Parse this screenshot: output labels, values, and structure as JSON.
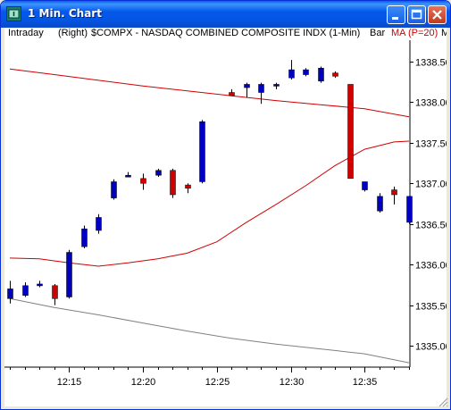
{
  "window": {
    "title": "1 Min. Chart",
    "buttons": [
      "minimize",
      "maximize",
      "close"
    ]
  },
  "infobar": {
    "mode": "Intraday",
    "scale_side": "(Right)",
    "symbol_desc": "$COMPX - NASDAQ COMBINED COMPOSITE INDX  (1-Min)",
    "bar_label": "Bar",
    "indicator_label": "MA (P=20)",
    "overflow_text": "M"
  },
  "colors": {
    "up_bar": "#0000C0",
    "down_bar": "#D00000",
    "ma_line": "#D00000",
    "lower_line": "#808080",
    "title_bar": "#0558EA"
  },
  "chart_data": {
    "type": "candlestick",
    "title": "$COMPX - NASDAQ COMBINED COMPOSITE INDX (1-Min)",
    "yaxis_side": "right",
    "ylim": [
      1334.75,
      1338.6
    ],
    "y_ticks": [
      "1338.50",
      "1338.00",
      "1337.50",
      "1337.00",
      "1336.50",
      "1336.00",
      "1335.50",
      "1335.00"
    ],
    "y_tick_values": [
      1338.5,
      1338.0,
      1337.5,
      1337.0,
      1336.5,
      1336.0,
      1335.5,
      1335.0
    ],
    "x_ticks": [
      "12:15",
      "12:20",
      "12:25",
      "12:30",
      "12:35"
    ],
    "x_tick_minutes": [
      15,
      20,
      25,
      30,
      35
    ],
    "xlim_minutes": [
      11.0,
      38.0
    ],
    "candles": [
      {
        "t": 11,
        "o": 1335.58,
        "h": 1335.8,
        "l": 1335.52,
        "c": 1335.7
      },
      {
        "t": 12,
        "o": 1335.62,
        "h": 1335.78,
        "l": 1335.6,
        "c": 1335.74
      },
      {
        "t": 13,
        "o": 1335.74,
        "h": 1335.8,
        "l": 1335.72,
        "c": 1335.76
      },
      {
        "t": 14,
        "o": 1335.74,
        "h": 1335.76,
        "l": 1335.5,
        "c": 1335.58
      },
      {
        "t": 15,
        "o": 1335.6,
        "h": 1336.18,
        "l": 1335.58,
        "c": 1336.15
      },
      {
        "t": 16,
        "o": 1336.22,
        "h": 1336.48,
        "l": 1336.2,
        "c": 1336.44
      },
      {
        "t": 17,
        "o": 1336.42,
        "h": 1336.62,
        "l": 1336.38,
        "c": 1336.58
      },
      {
        "t": 18,
        "o": 1336.82,
        "h": 1337.05,
        "l": 1336.8,
        "c": 1337.02
      },
      {
        "t": 19,
        "o": 1337.1,
        "h": 1337.14,
        "l": 1337.08,
        "c": 1337.1
      },
      {
        "t": 20,
        "o": 1337.06,
        "h": 1337.12,
        "l": 1336.92,
        "c": 1337.0
      },
      {
        "t": 21,
        "o": 1337.1,
        "h": 1337.18,
        "l": 1337.08,
        "c": 1337.16
      },
      {
        "t": 22,
        "o": 1337.16,
        "h": 1337.18,
        "l": 1336.82,
        "c": 1336.86
      },
      {
        "t": 23,
        "o": 1336.98,
        "h": 1337.0,
        "l": 1336.88,
        "c": 1336.94
      },
      {
        "t": 24,
        "o": 1337.02,
        "h": 1337.78,
        "l": 1337.0,
        "c": 1337.76
      },
      {
        "t": 26,
        "o": 1338.12,
        "h": 1338.16,
        "l": 1338.08,
        "c": 1338.08
      },
      {
        "t": 27,
        "o": 1338.18,
        "h": 1338.24,
        "l": 1338.06,
        "c": 1338.22
      },
      {
        "t": 28,
        "o": 1338.12,
        "h": 1338.24,
        "l": 1337.98,
        "c": 1338.22
      },
      {
        "t": 29,
        "o": 1338.2,
        "h": 1338.24,
        "l": 1338.16,
        "c": 1338.22
      },
      {
        "t": 30,
        "o": 1338.3,
        "h": 1338.52,
        "l": 1338.28,
        "c": 1338.4
      },
      {
        "t": 31,
        "o": 1338.34,
        "h": 1338.42,
        "l": 1338.32,
        "c": 1338.4
      },
      {
        "t": 32,
        "o": 1338.26,
        "h": 1338.44,
        "l": 1338.24,
        "c": 1338.42
      },
      {
        "t": 33,
        "o": 1338.36,
        "h": 1338.38,
        "l": 1338.3,
        "c": 1338.32
      },
      {
        "t": 34,
        "o": 1338.22,
        "h": 1338.22,
        "l": 1337.06,
        "c": 1337.06
      },
      {
        "t": 35,
        "o": 1336.92,
        "h": 1337.02,
        "l": 1336.9,
        "c": 1337.02
      },
      {
        "t": 36,
        "o": 1336.66,
        "h": 1336.88,
        "l": 1336.64,
        "c": 1336.84
      },
      {
        "t": 37,
        "o": 1336.92,
        "h": 1336.96,
        "l": 1336.74,
        "c": 1336.86
      },
      {
        "t": 38,
        "o": 1336.52,
        "h": 1336.84,
        "l": 1336.5,
        "c": 1336.84
      }
    ],
    "ma_upper": {
      "x": [
        11,
        14,
        17,
        20,
        23,
        26,
        29,
        32,
        35,
        38
      ],
      "y": [
        1338.41,
        1338.34,
        1338.27,
        1338.2,
        1338.14,
        1338.08,
        1338.02,
        1337.97,
        1337.92,
        1337.82
      ]
    },
    "ma_line": {
      "x": [
        11,
        13,
        15,
        17,
        19,
        21,
        23,
        25,
        27,
        29,
        31,
        33,
        35,
        37,
        38
      ],
      "y": [
        1336.08,
        1336.07,
        1336.02,
        1335.98,
        1336.02,
        1336.07,
        1336.14,
        1336.28,
        1336.52,
        1336.74,
        1336.97,
        1337.22,
        1337.42,
        1337.51,
        1337.52
      ]
    },
    "lower_line": {
      "x": [
        11,
        14,
        17,
        20,
        23,
        26,
        29,
        32,
        35,
        38
      ],
      "y": [
        1335.58,
        1335.47,
        1335.38,
        1335.28,
        1335.18,
        1335.09,
        1335.02,
        1334.96,
        1334.9,
        1334.79
      ]
    }
  }
}
